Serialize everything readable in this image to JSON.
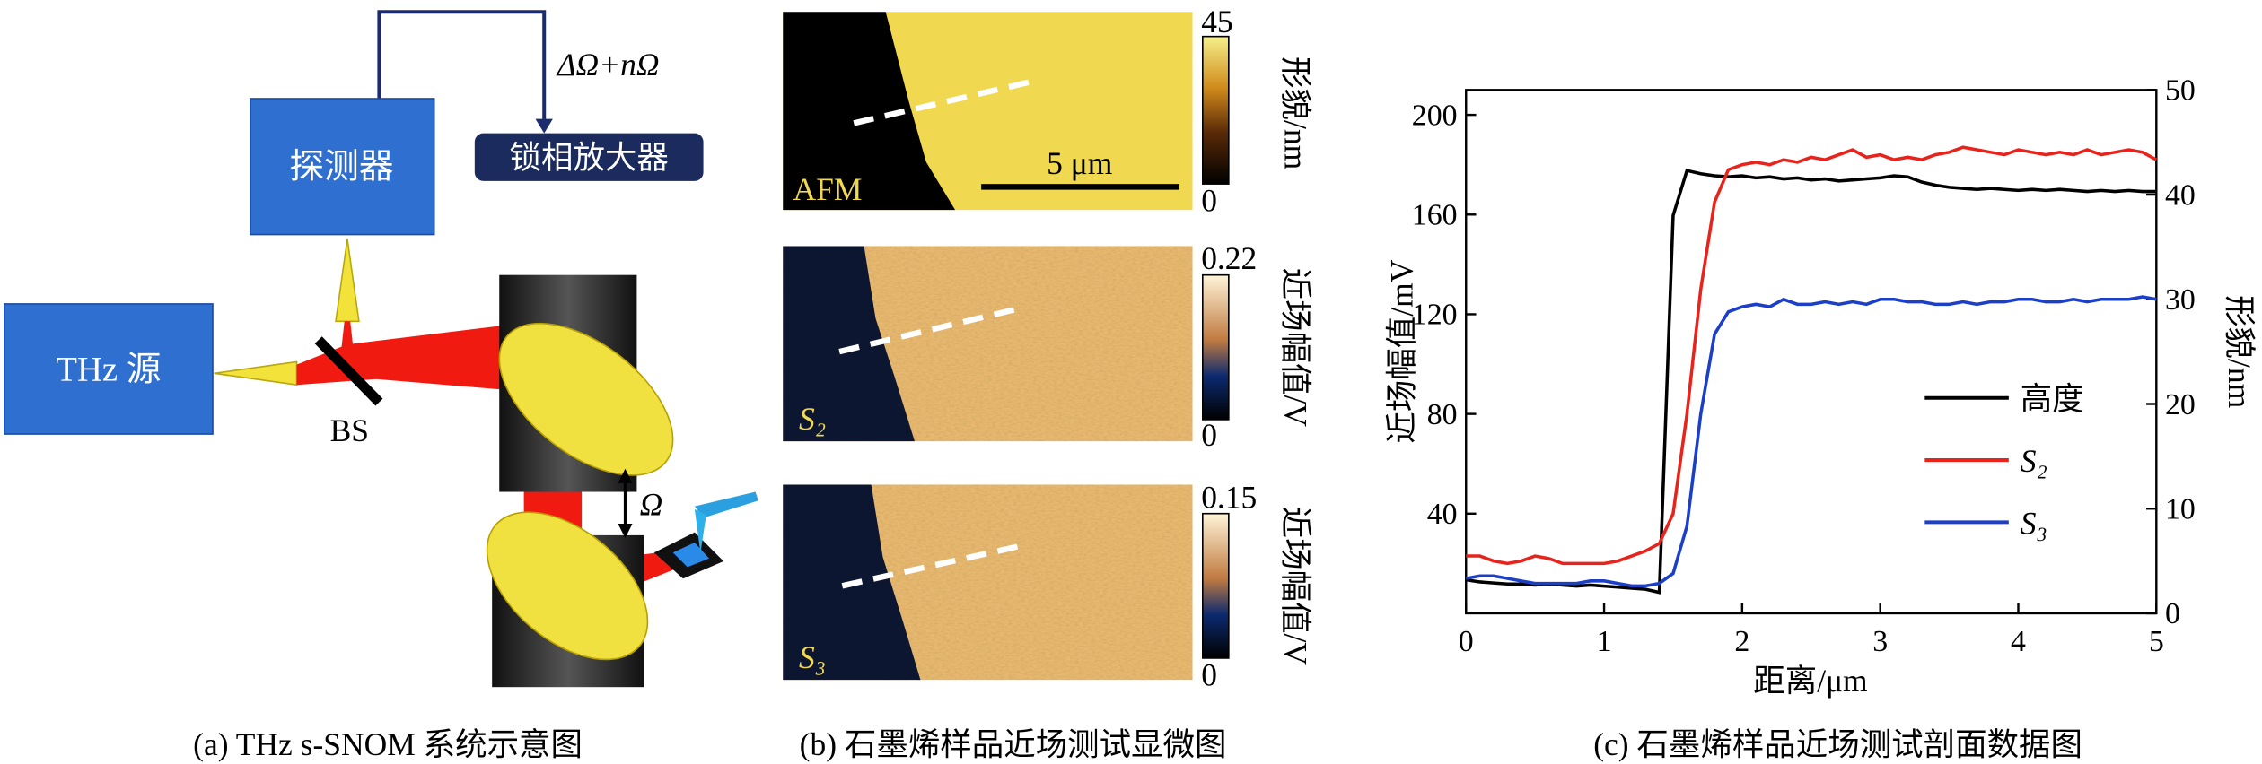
{
  "panel_a": {
    "caption": "(a) THz s-SNOM 系统示意图",
    "detector": "探测器",
    "lockin": "锁相放大器",
    "source": "THz 源",
    "beam_splitter": "BS",
    "frequency": "ΔΩ+nΩ",
    "omega": "Ω"
  },
  "panel_b": {
    "caption": "(b) 石墨烯样品近场测试显微图",
    "images": [
      {
        "label": "AFM",
        "scale_bar": "5 μm",
        "colorbar_label": "形貌/nm",
        "colorbar_max": 45,
        "colorbar_min": 0
      },
      {
        "label": "S₂",
        "colorbar_label": "近场幅值/V",
        "colorbar_max": 0.22,
        "colorbar_min": 0
      },
      {
        "label": "S₃",
        "colorbar_label": "近场幅值/V",
        "colorbar_max": 0.15,
        "colorbar_min": 0
      }
    ]
  },
  "chart_data": {
    "type": "line",
    "caption": "(c) 石墨烯样品近场测试剖面数据图",
    "x_label": "距离/μm",
    "y_label": "近场幅值/mV",
    "y2_label": "形貌/nm",
    "x": [
      0,
      0.1,
      0.2,
      0.3,
      0.4,
      0.5,
      0.6,
      0.7,
      0.8,
      0.9,
      1,
      1.1,
      1.2,
      1.3,
      1.4,
      1.5,
      1.6,
      1.7,
      1.8,
      1.9,
      2,
      2.1,
      2.2,
      2.3,
      2.4,
      2.5,
      2.6,
      2.7,
      2.8,
      2.9,
      3,
      3.1,
      3.2,
      3.3,
      3.4,
      3.5,
      3.6,
      3.7,
      3.8,
      3.9,
      4,
      4.1,
      4.2,
      4.3,
      4.4,
      4.5,
      4.6,
      4.7,
      4.8,
      4.9,
      5
    ],
    "series": [
      {
        "name": "高度",
        "color": "#000000",
        "axis": "y2",
        "values": [
          3.2,
          3.0,
          2.9,
          2.8,
          2.8,
          2.7,
          2.8,
          2.7,
          2.6,
          2.7,
          2.6,
          2.5,
          2.4,
          2.3,
          2.0,
          38,
          42.3,
          42.0,
          41.8,
          41.7,
          41.8,
          41.6,
          41.7,
          41.5,
          41.6,
          41.4,
          41.5,
          41.3,
          41.4,
          41.5,
          41.6,
          41.8,
          41.7,
          41.2,
          40.9,
          40.7,
          40.6,
          40.5,
          40.6,
          40.5,
          40.4,
          40.5,
          40.4,
          40.5,
          40.4,
          40.3,
          40.4,
          40.3,
          40.4,
          40.3,
          40.3
        ]
      },
      {
        "name": "S₂",
        "color": "#e8231c",
        "values": [
          23,
          23,
          21,
          20,
          21,
          23,
          22,
          20,
          20,
          20,
          20,
          21,
          23,
          25,
          28,
          40,
          80,
          130,
          165,
          178,
          180,
          181,
          180,
          182,
          181,
          183,
          182,
          184,
          186,
          183,
          184,
          182,
          183,
          182,
          184,
          185,
          187,
          186,
          185,
          184,
          186,
          185,
          184,
          185,
          184,
          186,
          184,
          185,
          186,
          185,
          182
        ]
      },
      {
        "name": "S₃",
        "color": "#1c3fc8",
        "values": [
          14,
          15,
          15,
          14,
          13,
          12,
          12,
          12,
          12,
          13,
          13,
          12,
          11,
          11,
          12,
          16,
          35,
          80,
          112,
          121,
          123,
          124,
          123,
          126,
          124,
          124,
          125,
          124,
          125,
          124,
          126,
          126,
          125,
          125,
          124,
          124,
          125,
          124,
          125,
          125,
          126,
          126,
          125,
          125,
          126,
          125,
          126,
          126,
          126,
          127,
          126
        ]
      }
    ],
    "xlim": [
      0,
      5
    ],
    "xticks": [
      0,
      1,
      2,
      3,
      4,
      5
    ],
    "ylim": [
      0,
      210
    ],
    "yticks": [
      40,
      80,
      120,
      160,
      200
    ],
    "y2lim": [
      0,
      50
    ],
    "y2ticks": [
      0,
      10,
      20,
      30,
      40,
      50
    ]
  }
}
